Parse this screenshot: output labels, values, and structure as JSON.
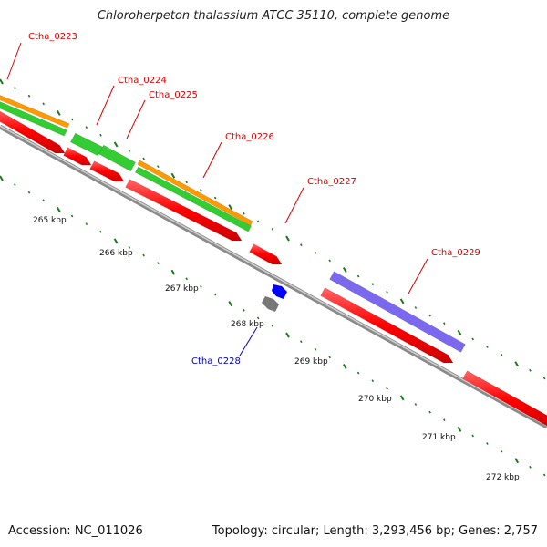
{
  "title": "Chloroherpeton thalassium ATCC 35110, complete genome",
  "footer": {
    "accession": "Accession: NC_011026",
    "summary": "Topology: circular; Length: 3,293,456 bp; Genes: 2,757"
  },
  "ticks": [
    "265 kbp",
    "266 kbp",
    "267 kbp",
    "268 kbp",
    "269 kbp",
    "270 kbp",
    "271 kbp",
    "272 kbp"
  ],
  "genes": [
    {
      "name": "Ctha_0223",
      "color": "#d40000"
    },
    {
      "name": "Ctha_0224",
      "color": "#d40000"
    },
    {
      "name": "Ctha_0225",
      "color": "#d40000"
    },
    {
      "name": "Ctha_0226",
      "color": "#d40000"
    },
    {
      "name": "Ctha_0227",
      "color": "#d40000"
    },
    {
      "name": "Ctha_0228",
      "color": "#0000c8"
    },
    {
      "name": "Ctha_0229",
      "color": "#d40000"
    }
  ],
  "colors": {
    "cds": "#ff0000",
    "trna": "#0000ff",
    "other": "#777777",
    "green": "#33cc33",
    "orange": "#ff9900",
    "purple": "#7b68ee",
    "backbone": "#888888",
    "tick": "#1a7a1a"
  }
}
